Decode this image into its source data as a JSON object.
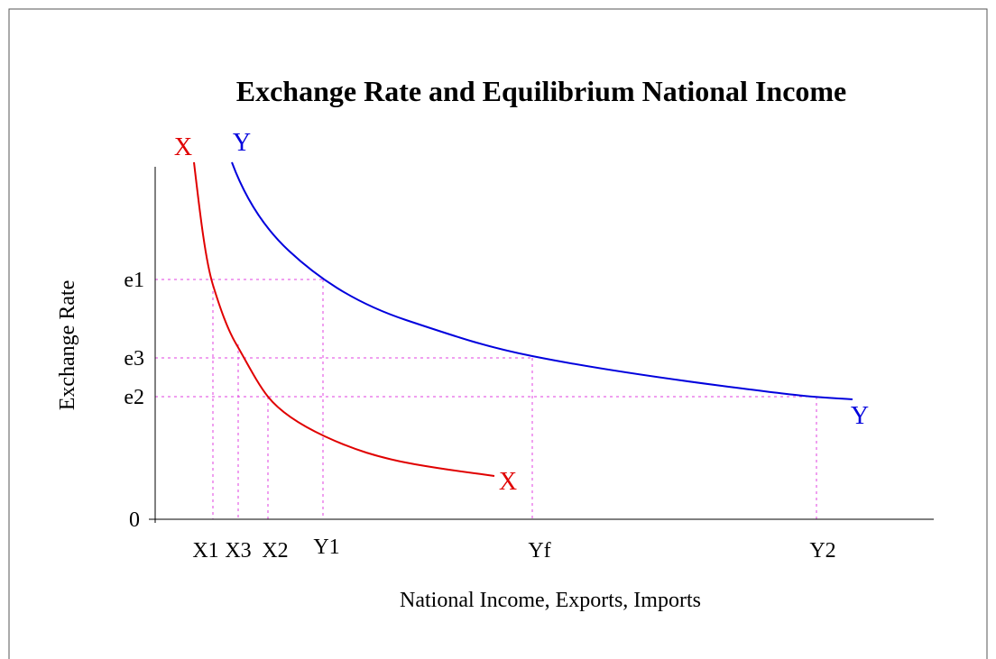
{
  "title": "Exchange Rate and Equilibrium National Income",
  "y_axis_label": "Exchange Rate",
  "x_axis_label": "National Income, Exports, Imports",
  "y_labels": [
    "e1",
    "e3",
    "e2",
    "0"
  ],
  "x_labels": [
    "X1",
    "X3",
    "X2",
    "Y1",
    "Yf",
    "Y2"
  ],
  "curves": [
    {
      "label": "X"
    },
    {
      "label": "Y"
    }
  ]
}
